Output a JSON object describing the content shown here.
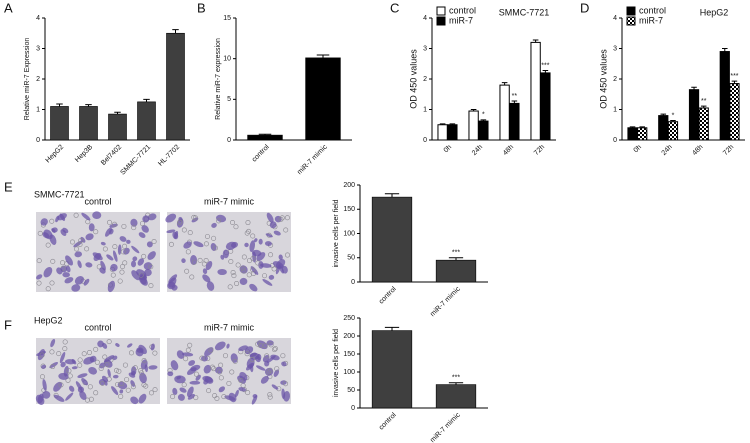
{
  "chart_data": [
    {
      "type": "bar",
      "panel": "A",
      "ylabel": "Relative miR-7 Expression",
      "categories": [
        "HepG2",
        "Hep3B",
        "Bel7402",
        "SMMC-7721",
        "HL-7702"
      ],
      "values": [
        1.1,
        1.1,
        0.85,
        1.25,
        3.5
      ],
      "errors": [
        0.08,
        0.06,
        0.06,
        0.08,
        0.12
      ],
      "color": "#3f3f3f",
      "ylim": [
        0,
        4
      ],
      "yticks": [
        0,
        1,
        2,
        3,
        4
      ]
    },
    {
      "type": "bar",
      "panel": "B",
      "ylabel": "Relative miR-7 expression",
      "categories": [
        "control",
        "miR-7 mimic"
      ],
      "values": [
        0.6,
        10.1
      ],
      "errors": [
        0.1,
        0.35
      ],
      "color": "#000000",
      "ylim": [
        0,
        15
      ],
      "yticks": [
        0,
        5,
        10,
        15
      ]
    },
    {
      "type": "grouped-bar",
      "panel": "C",
      "title": "SMMC-7721",
      "ylabel": "OD 450 values",
      "categories": [
        "0h",
        "24h",
        "48h",
        "72h"
      ],
      "series": [
        {
          "name": "control",
          "color": "#ffffff",
          "values": [
            0.5,
            0.95,
            1.8,
            3.2
          ],
          "errors": [
            0.03,
            0.05,
            0.08,
            0.08
          ]
        },
        {
          "name": "miR-7",
          "color": "#000000",
          "values": [
            0.5,
            0.62,
            1.2,
            2.2
          ],
          "errors": [
            0.03,
            0.04,
            0.08,
            0.08
          ]
        }
      ],
      "annotations": [
        null,
        "*",
        "**",
        "***"
      ],
      "ylim": [
        0,
        4
      ],
      "yticks": [
        0,
        1,
        2,
        3,
        4
      ],
      "legend": "upper left"
    },
    {
      "type": "grouped-bar",
      "panel": "D",
      "title": "HepG2",
      "ylabel": "OD 450 values",
      "categories": [
        "0h",
        "24h",
        "48h",
        "72h"
      ],
      "series": [
        {
          "name": "control",
          "color": "#000000",
          "values": [
            0.4,
            0.8,
            1.65,
            2.9
          ],
          "errors": [
            0.03,
            0.05,
            0.08,
            0.1
          ]
        },
        {
          "name": "miR-7",
          "color": "#000000",
          "hatch": true,
          "values": [
            0.4,
            0.6,
            1.05,
            1.85
          ],
          "errors": [
            0.03,
            0.04,
            0.06,
            0.08
          ]
        }
      ],
      "annotations": [
        null,
        "*",
        "**",
        "***"
      ],
      "ylim": [
        0,
        4
      ],
      "yticks": [
        0,
        1,
        2,
        3,
        4
      ],
      "legend": "upper left"
    },
    {
      "type": "bar",
      "panel": "E",
      "cell_line": "SMMC-7721",
      "image_labels": [
        "control",
        "miR-7 mimic"
      ],
      "ylabel": "invasive cells per field",
      "categories": [
        "control",
        "miR-7 mimic"
      ],
      "values": [
        175,
        45
      ],
      "errors": [
        7,
        5
      ],
      "annotations": [
        null,
        "***"
      ],
      "color": "#3f3f3f",
      "ylim": [
        0,
        200
      ],
      "yticks": [
        0,
        50,
        100,
        150,
        200
      ]
    },
    {
      "type": "bar",
      "panel": "F",
      "cell_line": "HepG2",
      "image_labels": [
        "control",
        "miR-7 mimic"
      ],
      "ylabel": "invasive cells per field",
      "categories": [
        "control",
        "miR-7 mimic"
      ],
      "values": [
        215,
        65
      ],
      "errors": [
        9,
        5
      ],
      "annotations": [
        null,
        "***"
      ],
      "color": "#3f3f3f",
      "ylim": [
        0,
        250
      ],
      "yticks": [
        0,
        50,
        100,
        150,
        200,
        250
      ]
    }
  ]
}
